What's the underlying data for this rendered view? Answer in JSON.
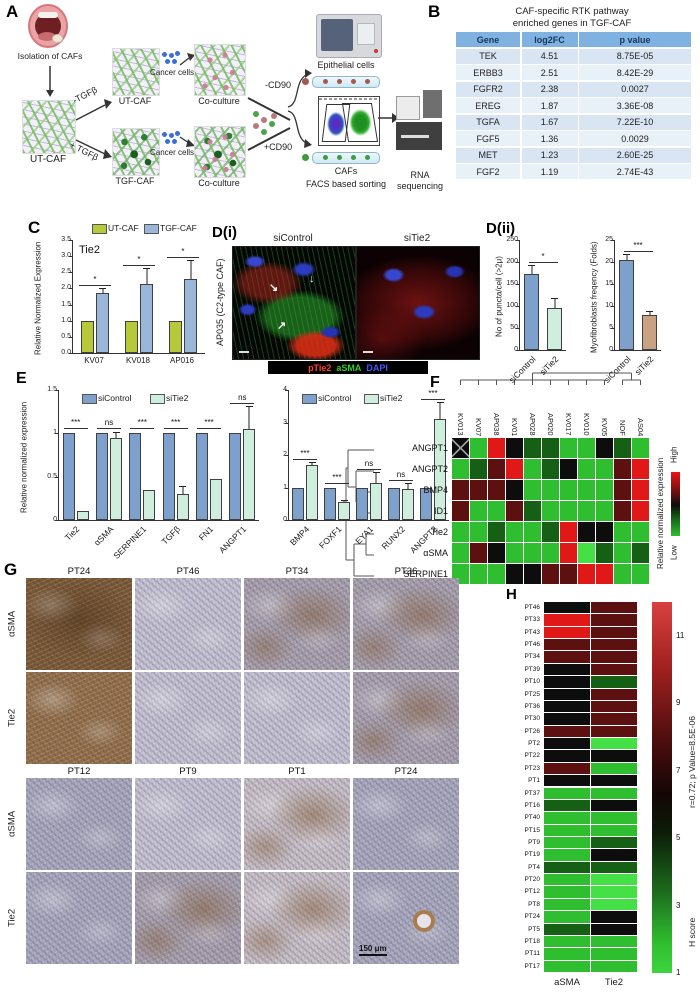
{
  "panelA": {
    "label": "A",
    "isolation": "Isolation of CAFs",
    "ut_caf_main": "UT-CAF",
    "minus_tgfb": "-TGFβ",
    "plus_tgfb": "+ TGFβ",
    "ut_caf_top": "UT-CAF",
    "tgf_caf": "TGF-CAF",
    "cancer_cells_top": "Cancer cells",
    "cancer_cells_bottom": "Cancer cells",
    "coculture_top": "Co-culture",
    "coculture_bottom": "Co-culture",
    "minus_cd90": "-CD90",
    "plus_cd90": "+CD90",
    "epithelial": "Epithelial cells",
    "cafs": "CAFs",
    "facs": "FACS based sorting",
    "rna_line1": "RNA",
    "rna_line2": "sequencing"
  },
  "panelB": {
    "label": "B",
    "title_line1": "CAF-specific RTK pathway",
    "title_line2": "enriched genes in TGF-CAF",
    "headers": [
      "Gene",
      "log2FC",
      "p value"
    ],
    "rows": [
      [
        "TEK",
        "4.51",
        "8.75E-05"
      ],
      [
        "ERBB3",
        "2.51",
        "8.42E-29"
      ],
      [
        "FGFR2",
        "2.38",
        "0.0027"
      ],
      [
        "EREG",
        "1.87",
        "3.36E-08"
      ],
      [
        "TGFA",
        "1.67",
        "7.22E-10"
      ],
      [
        "FGF5",
        "1.36",
        "0.0029"
      ],
      [
        "MET",
        "1.23",
        "2.60E-25"
      ],
      [
        "FGF2",
        "1.19",
        "2.74E-43"
      ]
    ]
  },
  "panelC": {
    "label": "C"
  },
  "panelD1": {
    "label": "D(i)",
    "sample": "AP035 (C2-type CAF)",
    "img1_title": "siControl",
    "img2_title": "siTie2",
    "cap1": "pTie2",
    "cap2": "aSMA",
    "cap3": "DAPI",
    "cap_colors": {
      "cap1": "#ff4433",
      "cap2": "#33cc33",
      "cap3": "#4455ff"
    }
  },
  "panelD2": {
    "label": "D(ii)"
  },
  "panelE": {
    "label": "E"
  },
  "panelF": {
    "label": "F",
    "cols": [
      "KV013",
      "KV07",
      "AP038",
      "KV01",
      "AP028",
      "AP020",
      "KV017",
      "KV010",
      "KV05",
      "NOF",
      "AS04"
    ],
    "genes": [
      "ANGPT1",
      "ANGPT2",
      "BMP4",
      "ID1",
      "Tie2",
      "αSMA",
      "SERPINE1"
    ],
    "cells": [
      [
        "x",
        "g",
        "r",
        "k",
        "dg",
        "dg",
        "g",
        "g",
        "k",
        "dg",
        "g"
      ],
      [
        "g",
        "dg",
        "dr",
        "r",
        "g",
        "dg",
        "k",
        "g",
        "g",
        "dr",
        "r"
      ],
      [
        "dr",
        "dr",
        "dr",
        "k",
        "g",
        "g",
        "g",
        "g",
        "g",
        "dr",
        "r"
      ],
      [
        "dr",
        "g",
        "g",
        "dr",
        "dg",
        "g",
        "g",
        "g",
        "g",
        "dr",
        "r"
      ],
      [
        "g",
        "g",
        "dg",
        "g",
        "g",
        "dg",
        "r",
        "k",
        "k",
        "g",
        "g"
      ],
      [
        "g",
        "dr",
        "k",
        "g",
        "g",
        "g",
        "r",
        "bg",
        "dg",
        "g",
        "dg"
      ],
      [
        "g",
        "g",
        "g",
        "k",
        "k",
        "dr",
        "dr",
        "r",
        "r",
        "g",
        "g"
      ]
    ],
    "legend_title": "Relative normalized expression",
    "legend_high": "High",
    "legend_low": "Low"
  },
  "panelG": {
    "label": "G",
    "row_labels": [
      "αSMA",
      "Tie2"
    ],
    "top_cols": [
      "PT24",
      "PT46",
      "PT34",
      "PT36"
    ],
    "bottom_cols": [
      "PT12",
      "PT9",
      "PT1",
      "PT24"
    ],
    "tones": [
      [
        "t-brown",
        "t-pale",
        "t-bluebrown",
        "t-bluebrown"
      ],
      [
        "t-brown2",
        "t-pale",
        "t-pale",
        "t-bluebrown"
      ],
      [
        "t-blue",
        "t-pale",
        "t-palebrown",
        "t-blue"
      ],
      [
        "t-blue",
        "t-bluebrown",
        "t-palebrown",
        "t-blue"
      ]
    ],
    "scalebar": "150 μm"
  },
  "panelH": {
    "label": "H",
    "col_labels": [
      "aSMA",
      "Tie2"
    ],
    "rows": [
      [
        "PT46",
        "k",
        "dr"
      ],
      [
        "PT33",
        "r",
        "dr"
      ],
      [
        "PT43",
        "r",
        "dr"
      ],
      [
        "PT46",
        "dr",
        "dr"
      ],
      [
        "PT34",
        "dr",
        "dr"
      ],
      [
        "PT39",
        "k",
        "dr"
      ],
      [
        "PT10",
        "k",
        "dg"
      ],
      [
        "PT25",
        "k",
        "dr"
      ],
      [
        "PT36",
        "k",
        "dr"
      ],
      [
        "PT30",
        "k",
        "dr"
      ],
      [
        "PT26",
        "dr",
        "dr"
      ],
      [
        "PT2",
        "k",
        "bg"
      ],
      [
        "PT22",
        "k",
        "k"
      ],
      [
        "PT23",
        "dr",
        "g"
      ],
      [
        "PT1",
        "k",
        "k"
      ],
      [
        "PT37",
        "g",
        "g"
      ],
      [
        "PT16",
        "dg",
        "k"
      ],
      [
        "PT40",
        "g",
        "g"
      ],
      [
        "PT15",
        "g",
        "g"
      ],
      [
        "PT9",
        "g",
        "dg"
      ],
      [
        "PT19",
        "g",
        "k"
      ],
      [
        "PT4",
        "dg",
        "dg"
      ],
      [
        "PT20",
        "g",
        "bg"
      ],
      [
        "PT12",
        "g",
        "bg"
      ],
      [
        "PT8",
        "g",
        "bg"
      ],
      [
        "PT24",
        "g",
        "k"
      ],
      [
        "PT5",
        "dg",
        "k"
      ],
      [
        "PT18",
        "g",
        "g"
      ],
      [
        "PT11",
        "g",
        "g"
      ],
      [
        "PT17",
        "g",
        "g"
      ]
    ],
    "scale_ticks": [
      "11",
      "9",
      "7",
      "5",
      "3",
      "1"
    ],
    "corr_label": "r=0.72; p Value=8.5E-06",
    "scale_title": "H score"
  },
  "colors": {
    "g": "#2fbe2f",
    "bg": "#45e045",
    "dg": "#156015",
    "k": "#0d0d0d",
    "dr": "#5c1010",
    "r": "#e01818",
    "siControl": "#7da0cc",
    "siTie2": "#cfeede",
    "ut_caf": "#b5c93a",
    "tgf_caf": "#9ab7d9",
    "tan": "#c9a284"
  },
  "chart_data": [
    {
      "id": "C",
      "type": "bar",
      "title": "Tie2",
      "ylabel": "Relative Normalized Expression",
      "ymax": 3.5,
      "ytick_step": 0.5,
      "ydec": 1,
      "ytrim": false,
      "categories": [
        "KV07",
        "KV018",
        "AP016"
      ],
      "series": [
        {
          "name": "UT-CAF",
          "color": "#b5c93a",
          "values": [
            1.0,
            1.0,
            1.0
          ],
          "err": [
            0,
            0,
            0
          ]
        },
        {
          "name": "TGF-CAF",
          "color": "#9ab7d9",
          "values": [
            1.85,
            2.15,
            2.3
          ],
          "err": [
            0.12,
            0.45,
            0.55
          ]
        }
      ],
      "sig": [
        "*",
        "*",
        "*"
      ],
      "rotate_xlabels": false,
      "legend_pos": "above"
    },
    {
      "id": "D2a",
      "type": "bar",
      "ylabel": "No of puncta/cell (>2μ)",
      "ymax": 250,
      "ytick_step": 50,
      "ydec": 0,
      "ytrim": true,
      "bars": [
        {
          "label": "siControl",
          "value": 172,
          "err": 20,
          "color": "#7da0cc"
        },
        {
          "label": "siTie2",
          "value": 95,
          "err": 22,
          "color": "#cfeede"
        }
      ],
      "sig_span": "*",
      "rotate_xlabels": true
    },
    {
      "id": "D2b",
      "type": "bar",
      "ylabel": "Myofibroblasts freqency (Folds)",
      "ymax": 25,
      "ytick_step": 5,
      "ydec": 0,
      "ytrim": true,
      "bars": [
        {
          "label": "siControl",
          "value": 20.5,
          "err": 1.2,
          "color": "#7da0cc"
        },
        {
          "label": "siTie2",
          "value": 8,
          "err": 0.6,
          "color": "#c9a284"
        }
      ],
      "sig_span": "***",
      "rotate_xlabels": true
    },
    {
      "id": "EL",
      "type": "bar",
      "ylabel": "Relative normalized expression",
      "ymax": 1.5,
      "ytick_step": 0.5,
      "ydec": 1,
      "ytrim": true,
      "categories": [
        "Tie2",
        "αSMA",
        "SERPINE1",
        "TGFβ",
        "FN1",
        "ANGPT1"
      ],
      "series": [
        {
          "name": "siControl",
          "color": "#7da0cc",
          "values": [
            1,
            1,
            1,
            1,
            1,
            1
          ],
          "err": [
            0.02,
            0.02,
            0.02,
            0.02,
            0.02,
            0.02
          ]
        },
        {
          "name": "siTie2",
          "color": "#cfeede",
          "values": [
            0.1,
            0.95,
            0.35,
            0.3,
            0.47,
            1.05
          ],
          "err": [
            0.02,
            0.05,
            0.03,
            0.08,
            0.03,
            0.25
          ]
        }
      ],
      "sig": [
        "***",
        "ns",
        "***",
        "***",
        "***",
        "ns"
      ],
      "rotate_xlabels": true,
      "legend_pos": "inside"
    },
    {
      "id": "ER",
      "type": "bar",
      "ylabel": "",
      "ymax": 4,
      "ytick_step": 1,
      "ydec": 0,
      "ytrim": true,
      "categories": [
        "BMP4",
        "FOXF1",
        "EYA1",
        "RUNX2",
        "ANGPT2"
      ],
      "series": [
        {
          "name": "siControl",
          "color": "#7da0cc",
          "values": [
            1,
            1,
            1,
            1,
            1
          ],
          "err": [
            0.02,
            0.02,
            0.02,
            0.02,
            0.02
          ]
        },
        {
          "name": "siTie2",
          "color": "#cfeede",
          "values": [
            1.7,
            0.55,
            1.15,
            0.95,
            3.1
          ],
          "err": [
            0.05,
            0.05,
            0.3,
            0.15,
            0.5
          ]
        }
      ],
      "sig": [
        "***",
        "***",
        "ns",
        "ns",
        "***"
      ],
      "rotate_xlabels": true,
      "legend_pos": "inside"
    },
    {
      "id": "F",
      "type": "heatmap",
      "see": "panelF"
    },
    {
      "id": "H",
      "type": "heatmap",
      "see": "panelH"
    }
  ]
}
